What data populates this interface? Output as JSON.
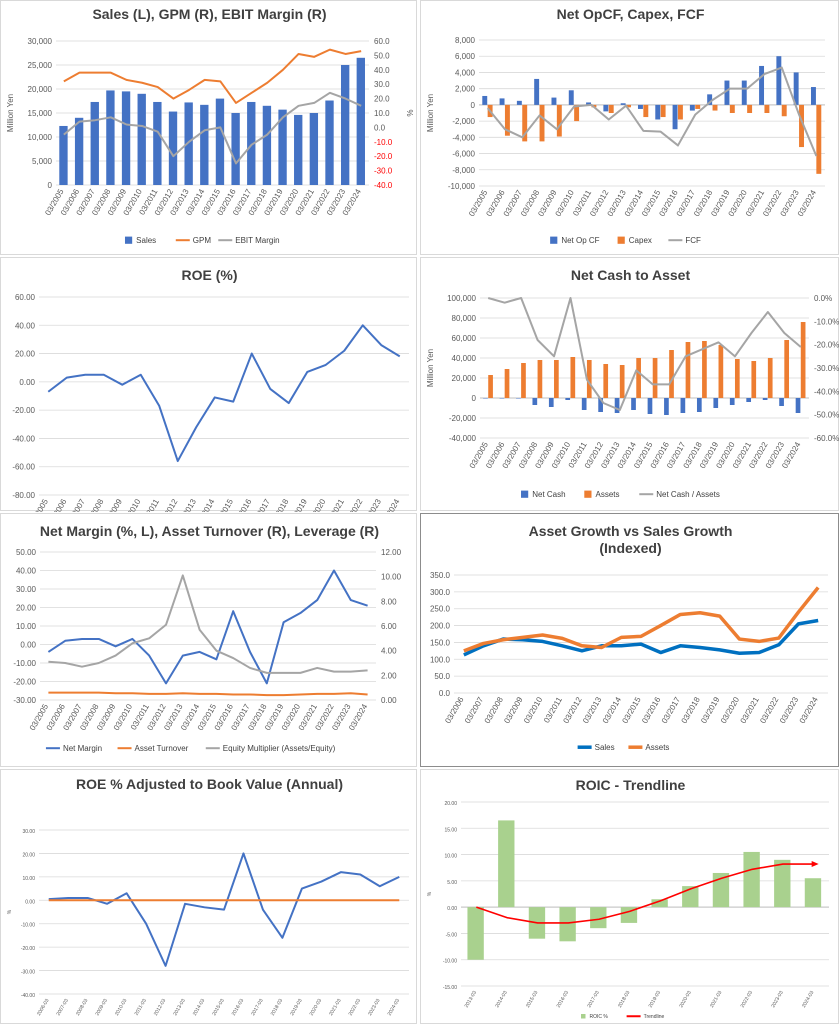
{
  "chart_data": [
    {
      "id": "c1",
      "type": "bar+line",
      "title": "Sales (L), GPM (R), EBIT Margin (R)",
      "ylabel": "Million Yen",
      "y2label": "%",
      "ylim": [
        0,
        30000
      ],
      "y2lim": [
        -40,
        60
      ],
      "yticks": [
        "0",
        "5,000",
        "10,000",
        "15,000",
        "20,000",
        "25,000",
        "30,000"
      ],
      "y2ticks": [
        "-40.0",
        "-30.0",
        "-20.0",
        "-10.0",
        "0.0",
        "10.0",
        "20.0",
        "30.0",
        "40.0",
        "50.0",
        "60.0"
      ],
      "categories": [
        "03/2005",
        "03/2006",
        "03/2007",
        "03/2008",
        "03/2009",
        "03/2010",
        "03/2011",
        "03/2012",
        "03/2013",
        "03/2014",
        "03/2015",
        "03/2016",
        "03/2017",
        "03/2018",
        "03/2019",
        "03/2020",
        "03/2021",
        "03/2022",
        "03/2023",
        "03/2024"
      ],
      "series": [
        {
          "name": "Sales",
          "kind": "bar",
          "axis": "left",
          "color": "#4472c4",
          "values": [
            12300,
            14000,
            17300,
            19700,
            19500,
            19000,
            17300,
            15300,
            17200,
            16700,
            18000,
            15000,
            17300,
            16500,
            15700,
            14600,
            15000,
            17600,
            25000,
            26500
          ]
        },
        {
          "name": "GPM",
          "kind": "line",
          "axis": "right",
          "color": "#ed7d31",
          "values": [
            32,
            38,
            38,
            38,
            33,
            31,
            28,
            20,
            26,
            33,
            32,
            17,
            24,
            31,
            40,
            51,
            49,
            54,
            51,
            53
          ]
        },
        {
          "name": "EBIT Margin",
          "kind": "line",
          "axis": "right",
          "color": "#a5a5a5",
          "values": [
            -5,
            4,
            5,
            7,
            2,
            1,
            -3,
            -20,
            -10,
            -2,
            0,
            -25,
            -12,
            -5,
            7,
            15,
            17,
            24,
            20,
            15
          ]
        }
      ]
    },
    {
      "id": "c2",
      "type": "bar+line",
      "title": "Net OpCF, Capex, FCF",
      "ylabel": "Million Yen",
      "ylim": [
        -10000,
        8000
      ],
      "yticks": [
        "-10,000",
        "-8,000",
        "-6,000",
        "-4,000",
        "-2,000",
        "0",
        "2,000",
        "4,000",
        "6,000",
        "8,000"
      ],
      "categories": [
        "03/2005",
        "03/2006",
        "03/2007",
        "03/2008",
        "03/2009",
        "03/2010",
        "03/2011",
        "03/2012",
        "03/2013",
        "03/2014",
        "03/2015",
        "03/2016",
        "03/2017",
        "03/2018",
        "03/2019",
        "03/2020",
        "03/2021",
        "03/2022",
        "03/2023",
        "03/2024"
      ],
      "series": [
        {
          "name": "Net Op CF",
          "kind": "bar",
          "color": "#4472c4",
          "values": [
            1100,
            800,
            500,
            3200,
            900,
            1800,
            300,
            -800,
            200,
            -500,
            -1800,
            -3000,
            -700,
            1300,
            3000,
            3000,
            4800,
            6000,
            4000,
            2200
          ]
        },
        {
          "name": "Capex",
          "kind": "bar",
          "color": "#ed7d31",
          "values": [
            -1500,
            -3800,
            -4500,
            -4500,
            -3900,
            -2000,
            -300,
            -1000,
            -300,
            -1500,
            -1500,
            -1800,
            -500,
            -700,
            -1000,
            -1000,
            -1000,
            -1400,
            -5200,
            -8500
          ]
        },
        {
          "name": "FCF",
          "kind": "line",
          "color": "#a5a5a5",
          "values": [
            -400,
            -3000,
            -4000,
            -1300,
            -3000,
            -200,
            0,
            -1800,
            -100,
            -3200,
            -3300,
            -5000,
            -1200,
            600,
            2000,
            2000,
            3800,
            4600,
            -1200,
            -6300
          ]
        }
      ]
    },
    {
      "id": "c3",
      "type": "line",
      "title": "ROE (%)",
      "ylim": [
        -80,
        60
      ],
      "yticks": [
        "-80.00",
        "-60.00",
        "-40.00",
        "-20.00",
        "0.00",
        "20.00",
        "40.00",
        "60.00"
      ],
      "categories": [
        "03/2005",
        "03/2006",
        "03/2007",
        "03/2008",
        "03/2009",
        "03/2010",
        "03/2011",
        "03/2012",
        "03/2013",
        "03/2014",
        "03/2015",
        "03/2016",
        "03/2017",
        "03/2018",
        "03/2019",
        "03/2020",
        "03/2021",
        "03/2022",
        "03/2023",
        "03/2024"
      ],
      "series": [
        {
          "kind": "line",
          "color": "#4472c4",
          "values": [
            -7,
            3,
            5,
            5,
            -2,
            5,
            -17,
            -56,
            -32,
            -11,
            -14,
            20,
            -5,
            -15,
            7,
            12,
            22,
            40,
            26,
            18
          ]
        }
      ]
    },
    {
      "id": "c4",
      "type": "bar+line",
      "title": "Net Cash to Asset",
      "ylabel": "Million Yen",
      "ylim": [
        -40000,
        100000
      ],
      "y2lim": [
        -60,
        0
      ],
      "yticks": [
        "-40,000",
        "-20,000",
        "0",
        "20,000",
        "40,000",
        "60,000",
        "80,000",
        "100,000"
      ],
      "y2ticks": [
        "-60.0%",
        "-50.0%",
        "-40.0%",
        "-30.0%",
        "-20.0%",
        "-10.0%",
        "0.0%"
      ],
      "categories": [
        "03/2005",
        "03/2006",
        "03/2007",
        "03/2008",
        "03/2009",
        "03/2010",
        "03/2011",
        "03/2012",
        "03/2013",
        "03/2014",
        "03/2015",
        "03/2016",
        "03/2017",
        "03/2018",
        "03/2019",
        "03/2020",
        "03/2021",
        "03/2022",
        "03/2023",
        "03/2024"
      ],
      "series": [
        {
          "name": "Net Cash",
          "kind": "bar",
          "axis": "left",
          "color": "#4472c4",
          "values": [
            0,
            0,
            0,
            -7000,
            -9000,
            -2000,
            -12000,
            -14000,
            -15000,
            -12000,
            -16000,
            -17000,
            -15000,
            -14000,
            -10000,
            -7000,
            -4000,
            -2000,
            -8000,
            -15000
          ]
        },
        {
          "name": "Assets",
          "kind": "bar",
          "axis": "left",
          "color": "#ed7d31",
          "values": [
            23000,
            29000,
            35000,
            38000,
            38000,
            41000,
            38000,
            34000,
            33000,
            40000,
            40000,
            48000,
            56000,
            57000,
            53000,
            39000,
            37000,
            40000,
            58000,
            76000
          ]
        },
        {
          "name": "Net Cash / Assets",
          "kind": "line",
          "axis": "right",
          "color": "#a5a5a5",
          "values": [
            0,
            -2,
            0,
            -18,
            -25,
            0,
            -35,
            -45,
            -48,
            -31,
            -37,
            -37,
            -25,
            -22,
            -19,
            -25,
            -15,
            -6,
            -15,
            -21
          ]
        }
      ]
    },
    {
      "id": "c5",
      "type": "line",
      "title": "Net Margin (%, L), Asset Turnover (R), Leverage (R)",
      "ylim": [
        -30,
        50
      ],
      "y2lim": [
        0,
        12
      ],
      "yticks": [
        "-30.00",
        "-20.00",
        "-10.00",
        "0.00",
        "10.00",
        "20.00",
        "30.00",
        "40.00",
        "50.00"
      ],
      "y2ticks": [
        "0.00",
        "2.00",
        "4.00",
        "6.00",
        "8.00",
        "10.00",
        "12.00"
      ],
      "categories": [
        "03/2005",
        "03/2006",
        "03/2007",
        "03/2008",
        "03/2009",
        "03/2010",
        "03/2011",
        "03/2012",
        "03/2013",
        "03/2014",
        "03/2015",
        "03/2016",
        "03/2017",
        "03/2018",
        "03/2019",
        "03/2020",
        "03/2021",
        "03/2022",
        "03/2023",
        "03/2024"
      ],
      "series": [
        {
          "name": "Net Margin",
          "kind": "line",
          "axis": "left",
          "color": "#4472c4",
          "values": [
            -4,
            2,
            3,
            3,
            -1,
            3,
            -6,
            -21,
            -6,
            -4,
            -8,
            18,
            -4,
            -21,
            12,
            17,
            24,
            40,
            24,
            21
          ]
        },
        {
          "name": "Asset Turnover",
          "kind": "line",
          "axis": "right",
          "color": "#ed7d31",
          "values": [
            0.6,
            0.6,
            0.6,
            0.6,
            0.55,
            0.55,
            0.5,
            0.5,
            0.55,
            0.5,
            0.5,
            0.45,
            0.45,
            0.4,
            0.4,
            0.45,
            0.5,
            0.5,
            0.55,
            0.45
          ]
        },
        {
          "name": "Equity Multiplier (Assets/Equity)",
          "kind": "line",
          "axis": "right",
          "color": "#a5a5a5",
          "values": [
            3.1,
            3.0,
            2.7,
            3.0,
            3.6,
            4.6,
            5.0,
            6.1,
            10.1,
            5.7,
            4.0,
            3.4,
            2.6,
            2.2,
            2.2,
            2.2,
            2.6,
            2.3,
            2.3,
            2.4
          ]
        }
      ]
    },
    {
      "id": "c6",
      "type": "line",
      "title": [
        "Asset Growth vs Sales Growth",
        "(Indexed)"
      ],
      "ylim": [
        0,
        350
      ],
      "yticks": [
        "0.0",
        "50.0",
        "100.0",
        "150.0",
        "200.0",
        "250.0",
        "300.0",
        "350.0"
      ],
      "categories": [
        "03/2006",
        "03/2007",
        "03/2008",
        "03/2009",
        "03/2010",
        "03/2011",
        "03/2012",
        "03/2013",
        "03/2014",
        "03/2015",
        "03/2016",
        "03/2017",
        "03/2018",
        "03/2019",
        "03/2020",
        "03/2021",
        "03/2022",
        "03/2023",
        "03/2024"
      ],
      "series": [
        {
          "name": "Sales",
          "kind": "line",
          "color": "#0070c0",
          "values": [
            113,
            140,
            160,
            158,
            153,
            140,
            125,
            140,
            140,
            145,
            120,
            140,
            135,
            128,
            118,
            120,
            143,
            205,
            215
          ]
        },
        {
          "name": "Assets",
          "kind": "line",
          "color": "#ed7d31",
          "values": [
            125,
            147,
            158,
            165,
            172,
            162,
            140,
            135,
            165,
            168,
            200,
            233,
            238,
            228,
            160,
            153,
            163,
            240,
            313
          ]
        }
      ]
    },
    {
      "id": "c7",
      "type": "line",
      "title": "ROE % Adjusted to Book Value (Annual)",
      "ylabel": "%",
      "ylim": [
        -40,
        30
      ],
      "yticks": [
        "-40.00",
        "-30.00",
        "-20.00",
        "-10.00",
        "0.00",
        "10.00",
        "20.00",
        "30.00"
      ],
      "categories": [
        "2006-03",
        "2007-03",
        "2008-03",
        "2009-03",
        "2010-03",
        "2011-03",
        "2012-03",
        "2013-03",
        "2014-03",
        "2015-03",
        "2016-03",
        "2017-03",
        "2018-03",
        "2019-03",
        "2020-03",
        "2021-03",
        "2022-03",
        "2023-03",
        "2024-03"
      ],
      "series": [
        {
          "kind": "line",
          "color": "#4472c4",
          "values": [
            0.5,
            1,
            1,
            -1.5,
            3,
            -10,
            -28,
            -1.5,
            -3,
            -4,
            20,
            -4,
            -16,
            5,
            8,
            12,
            11,
            6,
            10
          ]
        },
        {
          "kind": "line",
          "color": "#ed7d31",
          "values": [
            0,
            0,
            0,
            0,
            0,
            0,
            0,
            0,
            0,
            0,
            0,
            0,
            0,
            0,
            0,
            0,
            0,
            0,
            0
          ]
        }
      ]
    },
    {
      "id": "c8",
      "type": "bar+line",
      "title": "ROIC - Trendline",
      "ylabel": "%",
      "ylim": [
        -15,
        20
      ],
      "yticks": [
        "-15.00",
        "-10.00",
        "-5.00",
        "0.00",
        "5.00",
        "10.00",
        "15.00",
        "20.00"
      ],
      "categories": [
        "2013-03",
        "2014-03",
        "2015-03",
        "2016-03",
        "2017-03",
        "2018-03",
        "2019-03",
        "2020-03",
        "2021-03",
        "2022-03",
        "2023-03",
        "2024-03"
      ],
      "series": [
        {
          "name": "ROIC %",
          "kind": "bar",
          "color": "#a9d18e",
          "values": [
            -10,
            16.5,
            -6,
            -6.5,
            -4,
            -3,
            1.5,
            4,
            6.5,
            10.5,
            9,
            5.5
          ]
        },
        {
          "name": "Trendline",
          "kind": "line",
          "color": "#ff0000",
          "values": [
            0,
            -2,
            -3,
            -3,
            -2.3,
            -0.8,
            1.2,
            3.5,
            5.5,
            7.2,
            8.2,
            8.2
          ]
        }
      ]
    }
  ]
}
